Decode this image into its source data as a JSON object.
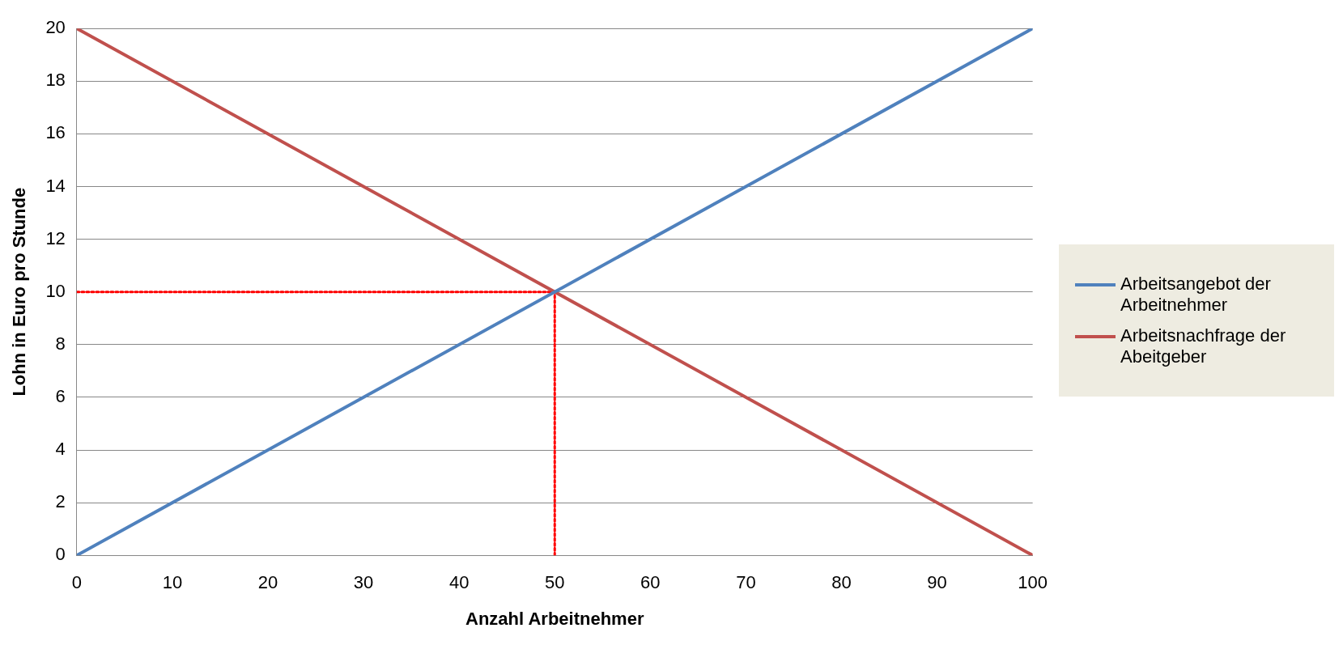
{
  "chart_data": {
    "type": "line",
    "xlabel": "Anzahl Arbeitnehmer",
    "ylabel": "Lohn in Euro pro Stunde",
    "xlim": [
      0,
      100
    ],
    "xticks": [
      0,
      10,
      20,
      30,
      40,
      50,
      60,
      70,
      80,
      90,
      100
    ],
    "ylim": [
      0,
      20
    ],
    "yticks": [
      0,
      2,
      4,
      6,
      8,
      10,
      12,
      14,
      16,
      18,
      20
    ],
    "grid": "y",
    "legend": "right",
    "marker": "none",
    "line_style": "solid",
    "series": [
      {
        "name": "Arbeitsangebot der Arbeitnehmer",
        "color": "#4f81bd",
        "x": [
          0,
          100
        ],
        "values": [
          0,
          20
        ]
      },
      {
        "name": "Arbeitsnachfrage der Abeitgeber",
        "color": "#c0504d",
        "x": [
          0,
          100
        ],
        "values": [
          20,
          0
        ]
      },
      {
        "color": "#ff0000",
        "line_style": "dotted",
        "x": [
          0,
          50
        ],
        "values": [
          10,
          10
        ]
      },
      {
        "color": "#ff0000",
        "line_style": "dotted",
        "x": [
          50,
          50
        ],
        "values": [
          0,
          10
        ]
      }
    ]
  }
}
